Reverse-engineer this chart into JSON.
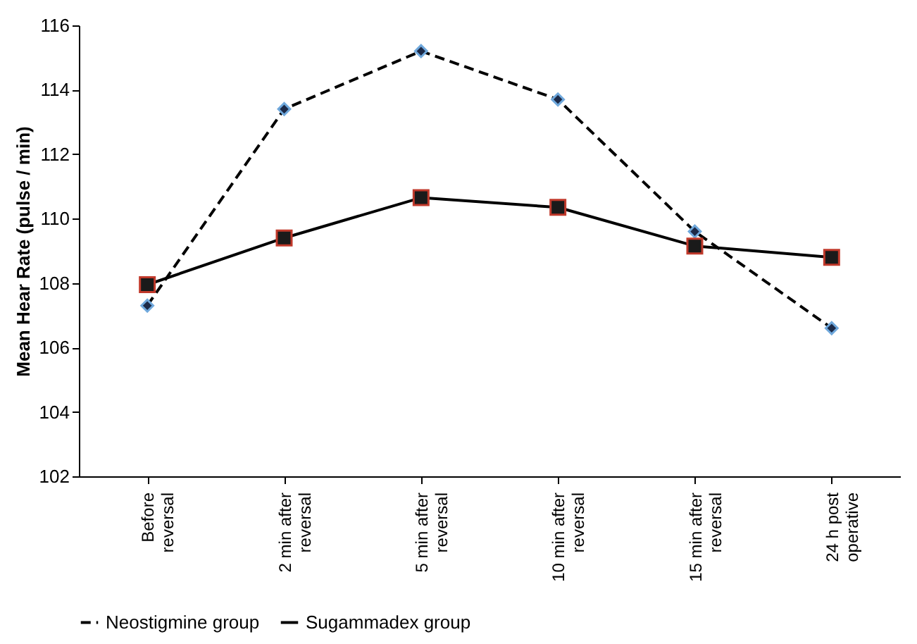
{
  "chart_data": {
    "type": "line",
    "ylabel": "Mean Hear Rate (pulse / min)",
    "categories": [
      "Before\nreversal",
      "2 min after\nreversal",
      "5  min after\nreversal",
      "10  min after\nreversal",
      "15  min after\nreversal",
      "24 h post\noperative"
    ],
    "series": [
      {
        "name": "Neostigmine group",
        "color": "#000000",
        "marker": "diamond",
        "line_style": "dashed",
        "values": [
          107.3,
          113.4,
          115.2,
          113.7,
          109.6,
          106.6
        ]
      },
      {
        "name": "Sugammadex group",
        "color": "#000000",
        "marker": "square",
        "line_style": "solid",
        "values": [
          107.95,
          109.4,
          110.65,
          110.35,
          109.15,
          108.8
        ]
      }
    ],
    "ylim": [
      102,
      116
    ],
    "yticks": [
      102,
      104,
      106,
      108,
      110,
      112,
      114,
      116
    ],
    "grid": false,
    "legend": "bottom"
  }
}
